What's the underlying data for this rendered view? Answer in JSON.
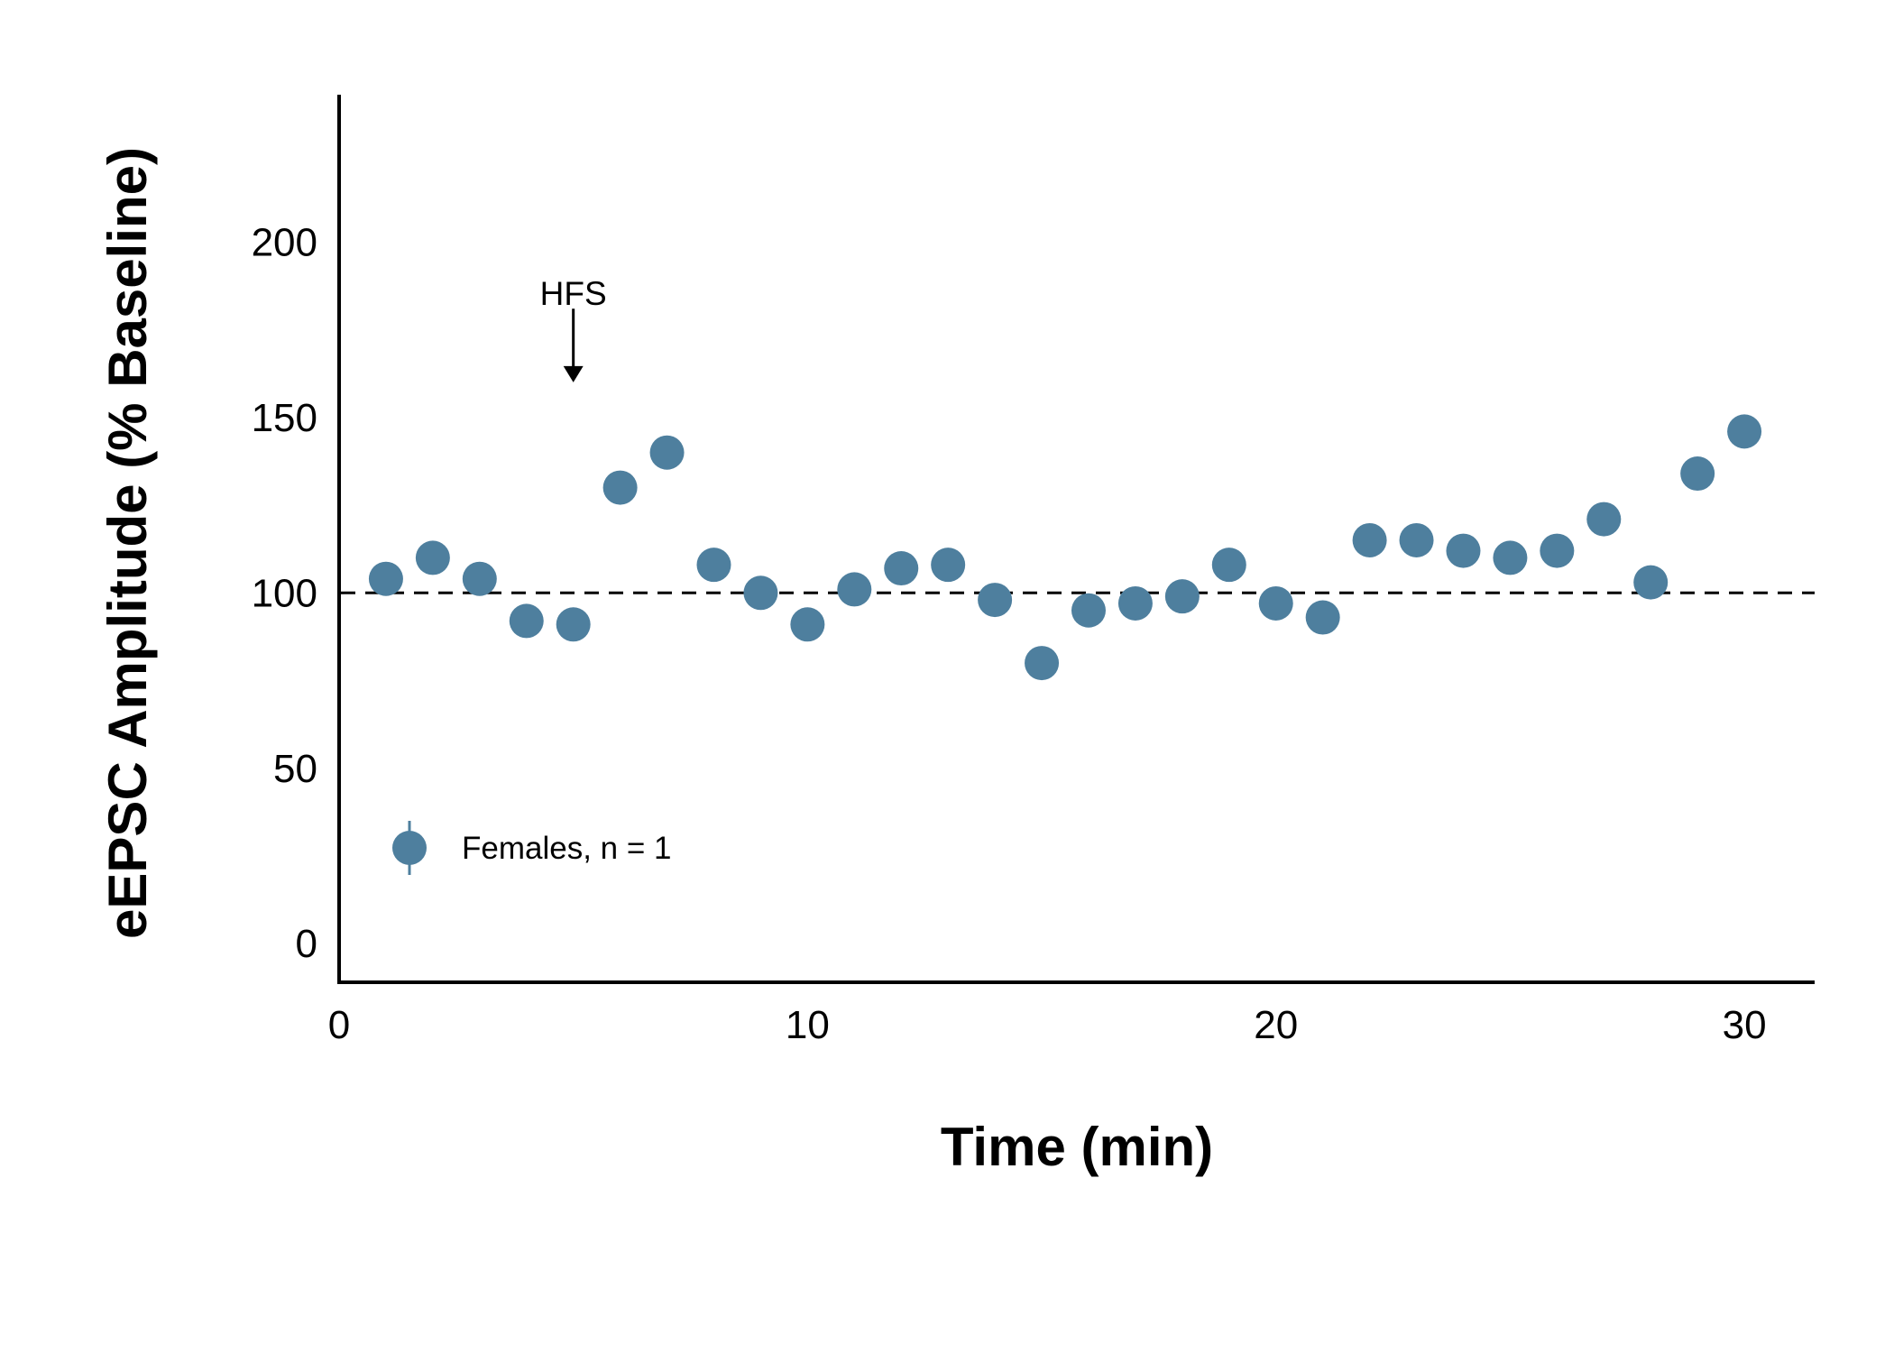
{
  "chart_data": {
    "type": "scatter",
    "title": "",
    "xlabel": "Time (min)",
    "ylabel": "eEPSC Amplitude (% Baseline)",
    "xlim": [
      0,
      31.5
    ],
    "ylim": [
      -11,
      242
    ],
    "x_ticks": [
      0,
      10,
      20,
      30
    ],
    "y_ticks": [
      0,
      50,
      100,
      150,
      200
    ],
    "x_tick_labels": [
      "0",
      "10",
      "20",
      "30"
    ],
    "y_tick_labels": [
      "0",
      "50",
      "100",
      "150",
      "200"
    ],
    "grid": false,
    "reference_line": {
      "y": 100,
      "style": "dashed",
      "color": "#000000"
    },
    "annotation": {
      "text": "HFS",
      "x": 5,
      "arrow_from_y": 181,
      "arrow_to_y": 160
    },
    "legend": {
      "placement": "bottom-left",
      "entries": [
        "Females, n = 1"
      ]
    },
    "series": [
      {
        "name": "Females, n = 1",
        "color": "#4e7f9e",
        "x": [
          1,
          2,
          3,
          4,
          5,
          6,
          7,
          8,
          9,
          10,
          11,
          12,
          13,
          14,
          15,
          16,
          17,
          18,
          19,
          20,
          21,
          22,
          23,
          24,
          25,
          26,
          27,
          28,
          29,
          30
        ],
        "y": [
          104,
          110,
          104,
          92,
          91,
          130,
          140,
          108,
          100,
          91,
          101,
          107,
          108,
          98,
          80,
          95,
          97,
          99,
          108,
          97,
          93,
          115,
          115,
          112,
          110,
          112,
          121,
          103,
          134,
          146
        ]
      }
    ]
  }
}
